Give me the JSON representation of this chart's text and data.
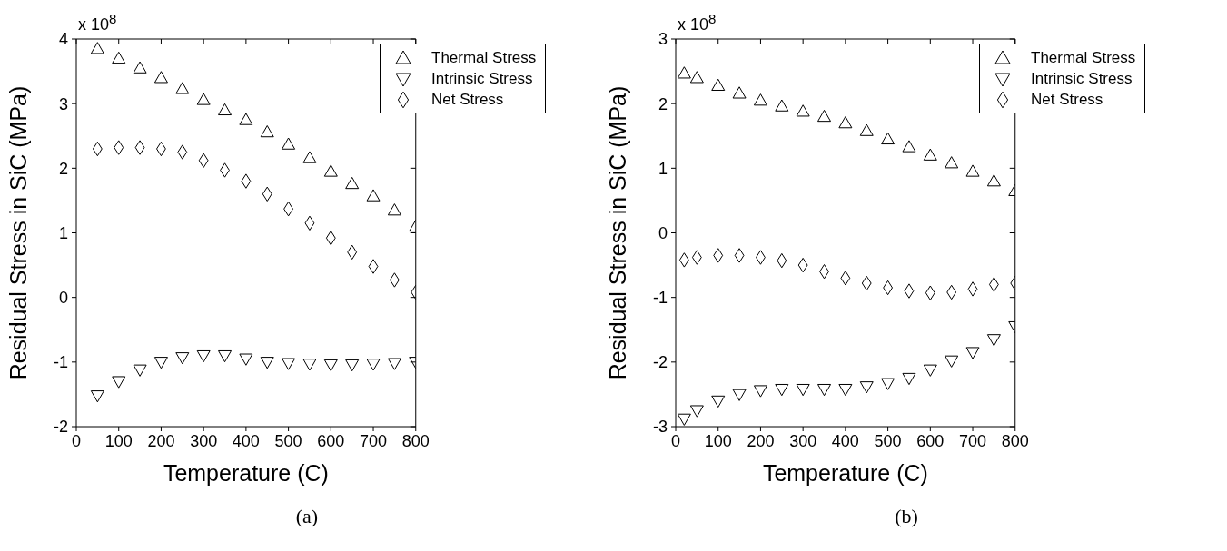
{
  "chart_data": [
    {
      "type": "scatter",
      "xlabel": "Temperature (C)",
      "ylabel": "Residual Stress in SiC (MPa)",
      "annotations": [
        "x 10$^{8}$",
        "(a)"
      ],
      "legend": "top right",
      "x": [
        50,
        100,
        150,
        200,
        250,
        300,
        350,
        400,
        450,
        500,
        550,
        600,
        650,
        700,
        750,
        800
      ],
      "xlim": [
        0,
        800
      ],
      "xticks": [
        0,
        100,
        200,
        300,
        400,
        500,
        600,
        700,
        800
      ],
      "ylim": [
        -2,
        4
      ],
      "yticks": [
        -2,
        -1,
        0,
        1,
        2,
        3,
        4
      ],
      "series": [
        {
          "name": "Thermal Stress",
          "color": "#000000",
          "marker": "triangle",
          "values": [
            3.85,
            3.7,
            3.55,
            3.4,
            3.23,
            3.06,
            2.9,
            2.75,
            2.56,
            2.37,
            2.16,
            1.95,
            1.76,
            1.57,
            1.35,
            1.1
          ]
        },
        {
          "name": "Intrinsic Stress",
          "color": "#000000",
          "marker": "triangle-down",
          "values": [
            -1.52,
            -1.3,
            -1.12,
            -1.0,
            -0.93,
            -0.9,
            -0.9,
            -0.95,
            -1.0,
            -1.02,
            -1.03,
            -1.04,
            -1.04,
            -1.03,
            -1.02,
            -1.0
          ]
        },
        {
          "name": "Net Stress",
          "color": "#000000",
          "marker": "diamond",
          "values": [
            2.3,
            2.32,
            2.32,
            2.3,
            2.25,
            2.12,
            1.97,
            1.8,
            1.6,
            1.37,
            1.15,
            0.92,
            0.7,
            0.48,
            0.27,
            0.08
          ]
        }
      ]
    },
    {
      "type": "scatter",
      "xlabel": "Temperature (C)",
      "ylabel": "Residual Stress in SiC (MPa)",
      "annotations": [
        "x 10$^{8}$",
        "(b)"
      ],
      "legend": "top right",
      "x": [
        20,
        50,
        100,
        150,
        200,
        250,
        300,
        350,
        400,
        450,
        500,
        550,
        600,
        650,
        700,
        750,
        800
      ],
      "xlim": [
        0,
        800
      ],
      "xticks": [
        0,
        100,
        200,
        300,
        400,
        500,
        600,
        700,
        800
      ],
      "ylim": [
        -3,
        3
      ],
      "yticks": [
        -3,
        -2,
        -1,
        0,
        1,
        2,
        3
      ],
      "series": [
        {
          "name": "Thermal Stress",
          "color": "#000000",
          "marker": "triangle",
          "values": [
            2.47,
            2.4,
            2.28,
            2.16,
            2.05,
            1.96,
            1.88,
            1.8,
            1.7,
            1.58,
            1.45,
            1.33,
            1.2,
            1.08,
            0.95,
            0.8,
            0.65
          ]
        },
        {
          "name": "Intrinsic Stress",
          "color": "#000000",
          "marker": "triangle-down",
          "values": [
            -2.88,
            -2.75,
            -2.6,
            -2.5,
            -2.44,
            -2.42,
            -2.42,
            -2.42,
            -2.42,
            -2.38,
            -2.33,
            -2.25,
            -2.12,
            -1.98,
            -1.85,
            -1.65,
            -1.45
          ]
        },
        {
          "name": "Net Stress",
          "color": "#000000",
          "marker": "diamond",
          "values": [
            -0.42,
            -0.38,
            -0.35,
            -0.35,
            -0.38,
            -0.43,
            -0.5,
            -0.6,
            -0.7,
            -0.78,
            -0.85,
            -0.9,
            -0.93,
            -0.92,
            -0.87,
            -0.8,
            -0.78
          ]
        }
      ]
    }
  ]
}
